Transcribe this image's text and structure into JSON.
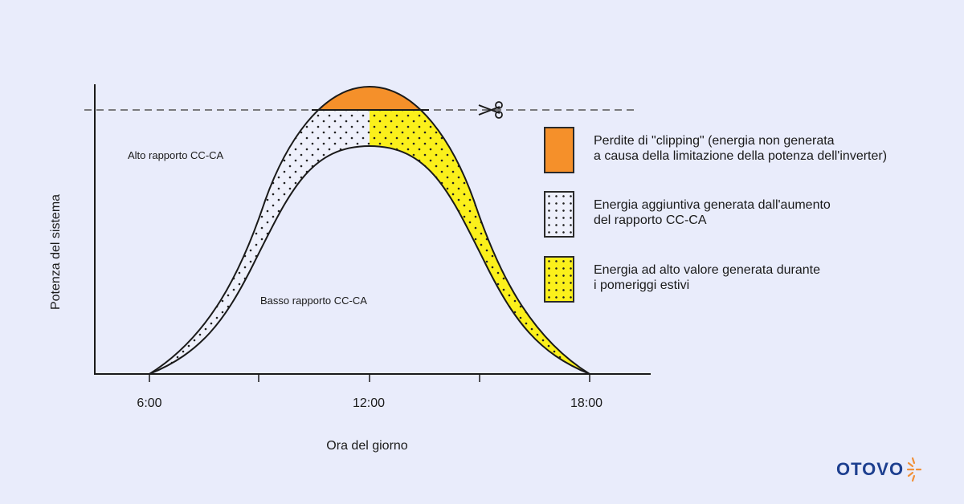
{
  "diagram": {
    "y_axis_label": "Potenza del sistema",
    "x_axis_label": "Ora del giorno",
    "x_ticks": [
      "6:00",
      "12:00",
      "18:00"
    ],
    "curve_labels": {
      "high": "Alto rapporto CC-CA",
      "low": "Basso rapporto CC-CA"
    },
    "scissors_icon": "scissors-icon"
  },
  "legend": [
    {
      "text": "Perdite di \"clipping\" (energia non generata\na causa della limitazione della potenza dell'inverter)",
      "color": "#f5902a"
    },
    {
      "text": "Energia aggiuntiva generata dall'aumento\ndel rapporto CC-CA",
      "color": "#eef0fb"
    },
    {
      "text": "Energia ad alto valore generata durante\ni pomeriggi estivi",
      "color": "#fbf01b"
    }
  ],
  "brand": {
    "name": "OTOVO",
    "accent": "#f0913a",
    "color": "#1d3f8f"
  }
}
